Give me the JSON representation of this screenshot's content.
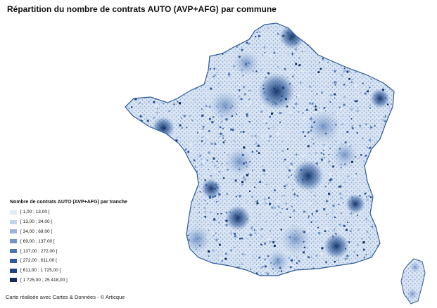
{
  "title": "Répartition du nombre de contrats AUTO (AVP+AFG) par commune",
  "legend": {
    "title": "Nombre de contrats AUTO (AVP+AFG) par tranche",
    "classes": [
      {
        "label": "[ 1,00 ; 13,00 [",
        "color": "#e3ebf6"
      },
      {
        "label": "[ 13,00 ; 34,00 [",
        "color": "#c3d3eb"
      },
      {
        "label": "[ 34,00 ; 69,00 [",
        "color": "#98b4dc"
      },
      {
        "label": "[ 69,00 ; 137,00 [",
        "color": "#7096c9"
      },
      {
        "label": "[ 137,00 ; 272,00 [",
        "color": "#4c76b3"
      },
      {
        "label": "[ 272,00 ; 611,00 [",
        "color": "#2d5a9b"
      },
      {
        "label": "[ 611,00 ; 1 725,00 [",
        "color": "#1a4383"
      },
      {
        "label": "[ 1 725,00 ; 25 418,00 ]",
        "color": "#0d2d63"
      }
    ]
  },
  "credit": "Carte réalisée avec Cartes & Données - © Articque",
  "map_colors": {
    "light": "#e3ebf6",
    "mid": "#7096c9",
    "dark": "#1a4383",
    "darkest": "#0d2d63"
  }
}
